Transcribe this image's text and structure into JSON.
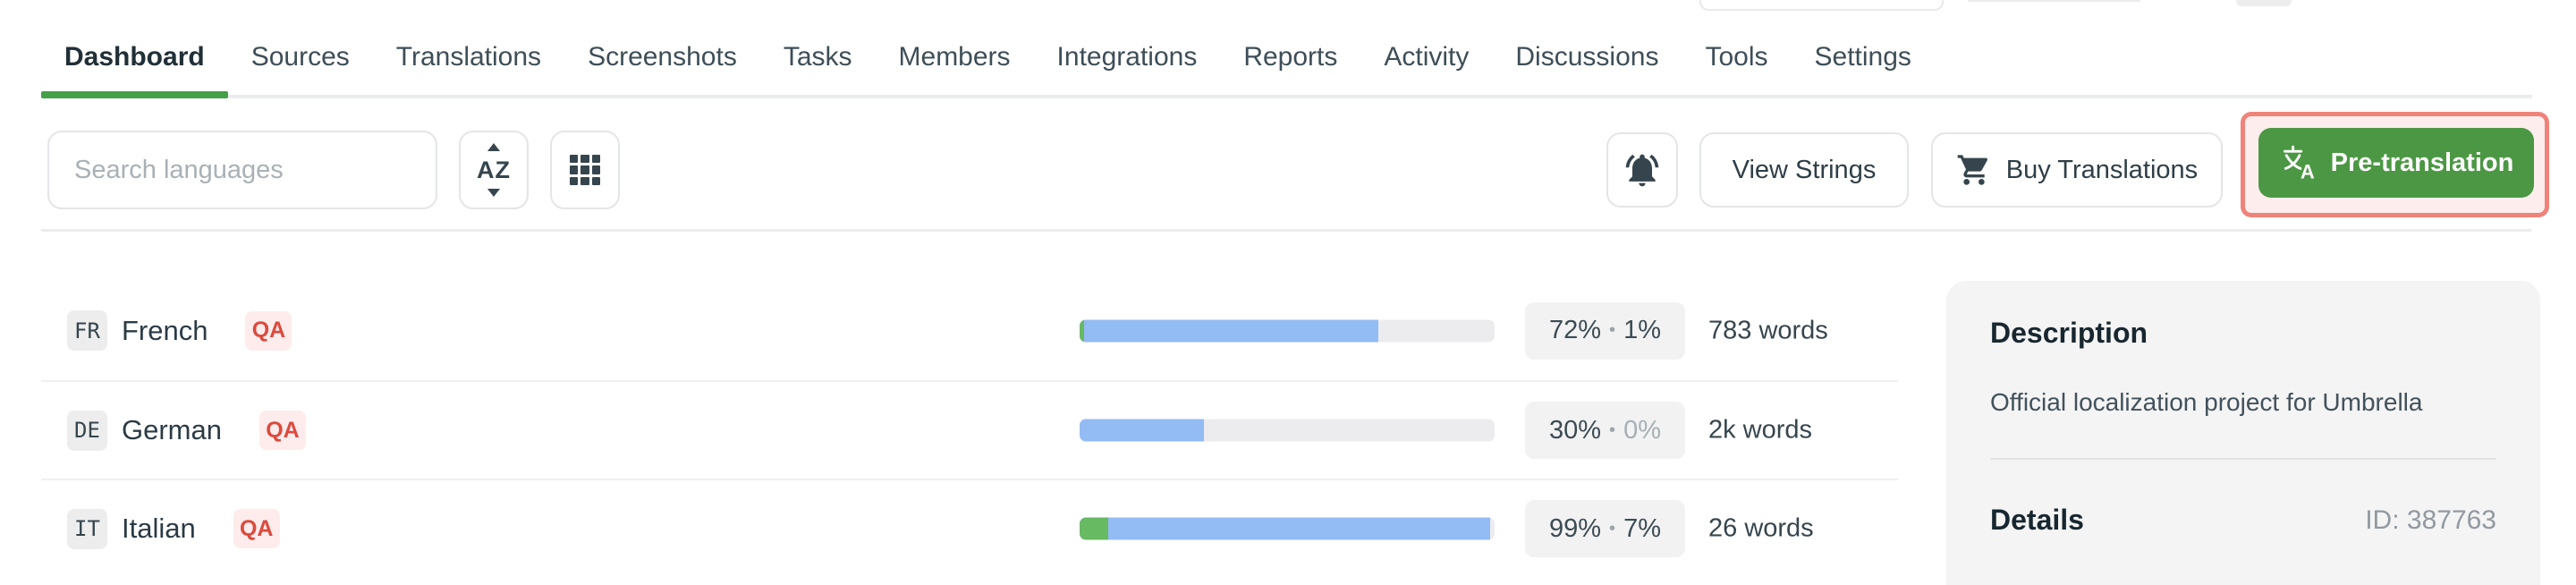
{
  "nav": {
    "items": [
      {
        "label": "Dashboard",
        "active": true
      },
      {
        "label": "Sources"
      },
      {
        "label": "Translations"
      },
      {
        "label": "Screenshots"
      },
      {
        "label": "Tasks"
      },
      {
        "label": "Members"
      },
      {
        "label": "Integrations"
      },
      {
        "label": "Reports"
      },
      {
        "label": "Activity"
      },
      {
        "label": "Discussions"
      },
      {
        "label": "Tools"
      },
      {
        "label": "Settings"
      }
    ],
    "active_underline_color": "#43a047"
  },
  "toolbar": {
    "search_placeholder": "Search languages",
    "view_strings_label": "View Strings",
    "buy_translations_label": "Buy Translations",
    "pretranslation_label": "Pre-translation",
    "pretranslation_color": "#4c9744",
    "annotation_color": "#ef837a"
  },
  "languages": [
    {
      "code": "FR",
      "name": "French",
      "qa": "QA",
      "translated_pct": 72,
      "approved_pct": 1,
      "translated_label": "72%",
      "approved_label": "1%",
      "words": "783 words"
    },
    {
      "code": "DE",
      "name": "German",
      "qa": "QA",
      "translated_pct": 30,
      "approved_pct": 0,
      "translated_label": "30%",
      "approved_label": "0%",
      "words": "2k words"
    },
    {
      "code": "IT",
      "name": "Italian",
      "qa": "QA",
      "translated_pct": 99,
      "approved_pct": 7,
      "translated_label": "99%",
      "approved_label": "7%",
      "words": "26 words"
    }
  ],
  "progress_colors": {
    "translated": "#93bbf4",
    "approved": "#68ba62",
    "track": "#ececee"
  },
  "side_panel": {
    "description_title": "Description",
    "description_body": "Official localization project for Umbrella",
    "details_title": "Details",
    "details_id": "ID: 387763"
  }
}
